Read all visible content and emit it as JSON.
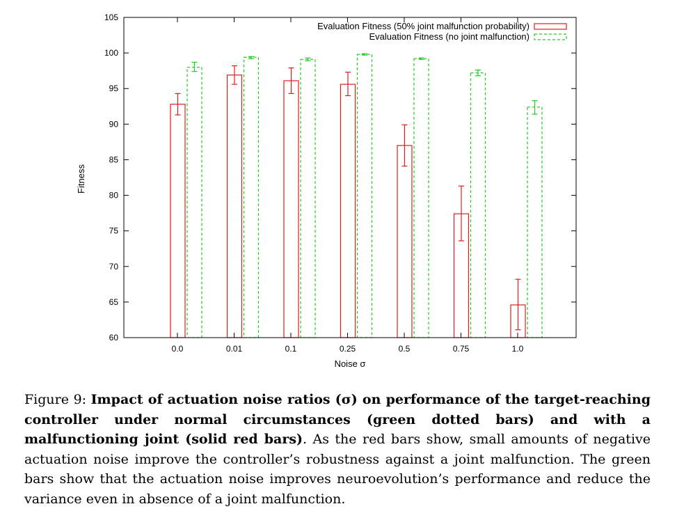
{
  "chart_data": {
    "type": "bar",
    "xlabel": "Noise σ",
    "ylabel": "Fitness",
    "ylim": [
      60,
      105
    ],
    "yticks": [
      60,
      65,
      70,
      75,
      80,
      85,
      90,
      95,
      100,
      105
    ],
    "categories": [
      "0.0",
      "0.01",
      "0.1",
      "0.25",
      "0.5",
      "0.75",
      "1.0"
    ],
    "grid": false,
    "legend_position": "top-right",
    "series": [
      {
        "name": "Evaluation Fitness (50% joint malfunction probability)",
        "style": "solid",
        "color": "#e31a1c",
        "values": [
          92.8,
          96.9,
          96.1,
          95.6,
          87.0,
          77.4,
          64.6
        ],
        "err_low": [
          91.3,
          95.6,
          94.3,
          94.0,
          84.1,
          73.6,
          61.1
        ],
        "err_high": [
          94.3,
          98.2,
          97.9,
          97.3,
          89.9,
          81.3,
          68.2
        ]
      },
      {
        "name": "Evaluation Fitness (no joint malfunction)",
        "style": "dashed",
        "color": "#1fcc1f",
        "values": [
          98.0,
          99.4,
          99.1,
          99.8,
          99.2,
          97.2,
          92.4
        ],
        "err_low": [
          97.4,
          99.2,
          98.9,
          99.7,
          99.1,
          96.8,
          91.4
        ],
        "err_high": [
          98.7,
          99.5,
          99.3,
          99.9,
          99.3,
          97.6,
          93.3
        ]
      }
    ]
  },
  "caption": {
    "label": "Figure 9: ",
    "bold": "Impact of actuation noise ratios (σ) on performance of the target-reaching controller under normal circumstances (green dotted bars) and with a malfunctioning joint (solid red bars)",
    "rest": ". As the red bars show, small amounts of negative actuation noise improve the controller’s robustness against a joint malfunction. The green bars show that the actuation noise improves neuroevolution’s performance and reduce the variance even in absence of a joint malfunction."
  }
}
